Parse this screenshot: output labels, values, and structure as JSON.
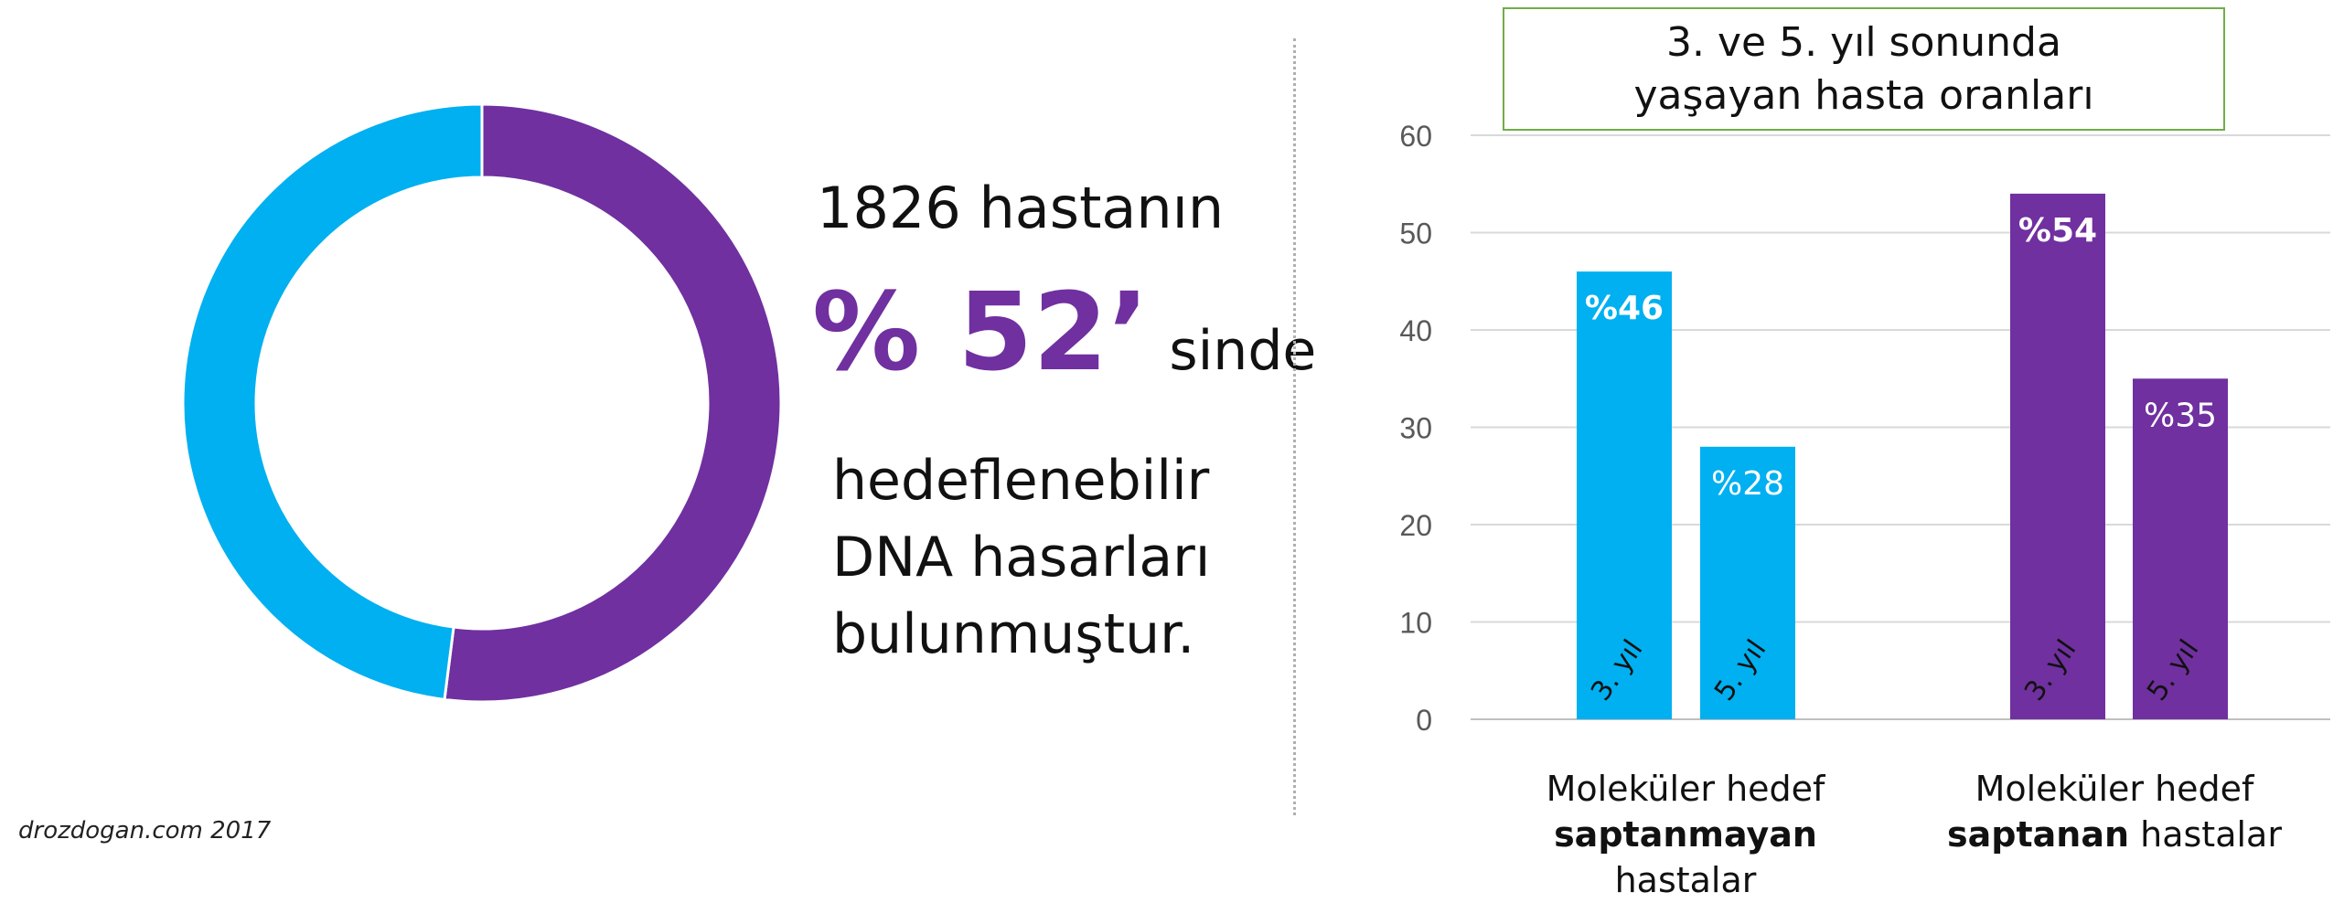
{
  "headline": {
    "line1": "1826 hastanın",
    "big_value": "% 52’",
    "suffix": "sinde",
    "description": [
      "hedeflenebilir",
      "DNA hasarları",
      "bulunmuştur."
    ]
  },
  "footer": "drozdogan.com 2017",
  "colors": {
    "blue": "#00b0f0",
    "purple": "#7030a0",
    "grid": "#d9d9d9",
    "title_border": "#70ad47"
  },
  "chart_data": [
    {
      "type": "pie",
      "variant": "donut",
      "slices": [
        {
          "value": 52,
          "color": "#7030a0"
        },
        {
          "value": 48,
          "color": "#00b0f0"
        }
      ]
    },
    {
      "type": "bar",
      "title": [
        "3. ve 5. yıl sonunda",
        "yaşayan hasta oranları"
      ],
      "ylim": [
        0,
        60
      ],
      "yticks": [
        0,
        10,
        20,
        30,
        40,
        50,
        60
      ],
      "grid": true,
      "groups": [
        {
          "label_line1": "Moleküler hedef",
          "label_bold": "saptanmayan",
          "label_rest": " hastalar",
          "color": "#00b0f0"
        },
        {
          "label_line1": "Moleküler hedef",
          "label_bold": "saptanan",
          "label_rest": " hastalar",
          "color": "#7030a0"
        }
      ],
      "bars": [
        {
          "group": 0,
          "value": 46,
          "label": "%46",
          "bold": true,
          "sub": "3. yıl"
        },
        {
          "group": 0,
          "value": 28,
          "label": "%28",
          "bold": false,
          "sub": "5. yıl"
        },
        {
          "group": 1,
          "value": 54,
          "label": "%54",
          "bold": true,
          "sub": "3. yıl"
        },
        {
          "group": 1,
          "value": 35,
          "label": "%35",
          "bold": false,
          "sub": "5. yıl"
        }
      ]
    }
  ]
}
